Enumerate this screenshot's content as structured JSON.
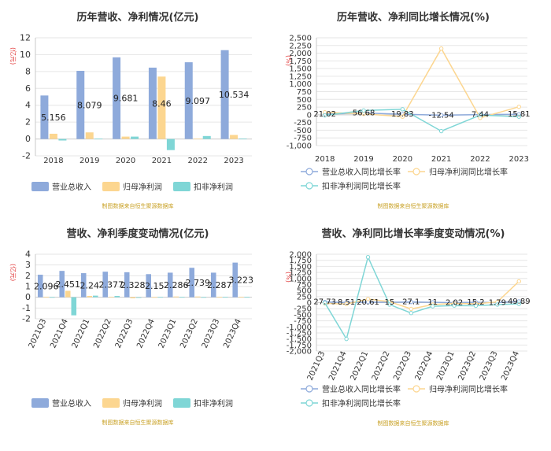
{
  "colors": {
    "revenue": "#8eaadb",
    "net_profit": "#fcd690",
    "deducted": "#7fd6d6",
    "axis": "#999999",
    "grid": "#e6e6e6",
    "title": "#333333",
    "unit": "#e23a3a",
    "source": "#c9a227"
  },
  "chart_data": [
    {
      "type": "bar",
      "title": "历年营收、净利情况(亿元)",
      "unit": "(亿元)",
      "source": "制图数据来自恒生聚源数据库",
      "categories": [
        "2018",
        "2019",
        "2020",
        "2021",
        "2022",
        "2023"
      ],
      "ylim": [
        -2,
        12
      ],
      "yticks": [
        -2,
        0,
        2,
        4,
        6,
        8,
        10,
        12
      ],
      "series": [
        {
          "name": "营业总收入",
          "values": [
            5.156,
            8.079,
            9.681,
            8.46,
            9.097,
            10.534
          ],
          "labels": [
            "5.156",
            "8.079",
            "9.681",
            "8.46",
            "9.097",
            "10.534"
          ]
        },
        {
          "name": "归母净利润",
          "values": [
            0.62,
            0.78,
            0.28,
            7.4,
            0.05,
            0.48
          ]
        },
        {
          "name": "扣非净利润",
          "values": [
            -0.18,
            0.05,
            0.28,
            -1.32,
            0.35,
            0.06
          ]
        }
      ],
      "legend": "bottom"
    },
    {
      "type": "line",
      "title": "历年营收、净利同比增长情况(%)",
      "unit": "(%)",
      "source": "制图数据来自恒生聚源数据库",
      "categories": [
        "2018",
        "2019",
        "2020",
        "2021",
        "2022",
        "2023"
      ],
      "ylim": [
        -1000,
        2500
      ],
      "yticks": [
        -1000,
        -750,
        -500,
        -250,
        0,
        250,
        500,
        750,
        1000,
        1250,
        1500,
        1750,
        2000,
        2250,
        2500
      ],
      "ytick_labels": [
        "-1,000",
        "-750",
        "-500",
        "-250",
        "0",
        "250",
        "500",
        "750",
        "1,000",
        "1,250",
        "1,500",
        "1,750",
        "2,000",
        "2,250",
        "2,500"
      ],
      "series": [
        {
          "name": "营业总收入同比增长率",
          "values": [
            21.02,
            56.68,
            19.83,
            -12.54,
            7.44,
            15.81
          ],
          "labels": [
            "21.02",
            "56.68",
            "19.83",
            "-12.54",
            "7.44",
            "15.81"
          ]
        },
        {
          "name": "归母净利润同比增长率",
          "values": [
            80,
            30,
            -60,
            2150,
            -100,
            260
          ]
        },
        {
          "name": "扣非净利润同比增长率",
          "values": [
            -20,
            140,
            180,
            -530,
            -10,
            -60
          ]
        }
      ],
      "legend": "bottom"
    },
    {
      "type": "bar",
      "title": "营收、净利季度变动情况(亿元)",
      "unit": "(亿元)",
      "source": "制图数据来自恒生聚源数据库",
      "categories": [
        "2021Q3",
        "2021Q4",
        "2022Q1",
        "2022Q2",
        "2022Q3",
        "2022Q4",
        "2023Q1",
        "2023Q2",
        "2023Q3",
        "2023Q4"
      ],
      "ylim": [
        -2,
        4
      ],
      "yticks": [
        -2,
        -1,
        0,
        1,
        2,
        3,
        4
      ],
      "series": [
        {
          "name": "营业总收入",
          "values": [
            2.096,
            2.451,
            2.24,
            2.377,
            2.328,
            2.15,
            2.286,
            2.739,
            2.287,
            3.223
          ],
          "labels": [
            "2.096",
            "2.451",
            "2.24",
            "2.377",
            "2.328",
            "2.15",
            "2.286",
            "2.739",
            "2.287",
            "3.223"
          ]
        },
        {
          "name": "归母净利润",
          "values": [
            0.05,
            0.6,
            0.12,
            0.05,
            -0.1,
            0.02,
            0.07,
            0.07,
            0.05,
            0.05
          ]
        },
        {
          "name": "扣非净利润",
          "values": [
            0.02,
            -1.68,
            0.15,
            0.12,
            -0.05,
            0.03,
            0.03,
            0.02,
            0.04,
            0.04
          ]
        }
      ],
      "legend": "bottom"
    },
    {
      "type": "line",
      "title": "营收、净利同比增长率季度变动情况(%)",
      "unit": "(%)",
      "source": "制图数据来自恒生聚源数据库",
      "categories": [
        "2021Q3",
        "2021Q4",
        "2022Q1",
        "2022Q2",
        "2022Q3",
        "2022Q4",
        "2023Q1",
        "2023Q2",
        "2023Q3",
        "2023Q4"
      ],
      "ylim": [
        -2000,
        2000
      ],
      "yticks": [
        -2000,
        -1750,
        -1500,
        -1250,
        -1000,
        -750,
        -500,
        -250,
        0,
        250,
        500,
        750,
        1000,
        1250,
        1500,
        1750,
        2000
      ],
      "ytick_labels": [
        "-2,000",
        "-1,750",
        "-1,500",
        "-1,250",
        "-1,000",
        "-750",
        "-500",
        "-250",
        "0",
        "250",
        "500",
        "750",
        "1,000",
        "1,250",
        "1,500",
        "1,750",
        "2,000"
      ],
      "series": [
        {
          "name": "营业总收入同比增长率",
          "values": [
            27.73,
            8.51,
            20.61,
            15,
            27.1,
            11.2,
            2.02,
            15.2,
            1.79,
            49.89
          ],
          "labels": [
            "27.73",
            "8.51",
            "20.61",
            "15",
            "27.1",
            "11",
            "2.02",
            "15.2",
            "1.79",
            "49.89"
          ]
        },
        {
          "name": "归母净利润同比增长率",
          "values": [
            -30,
            -60,
            150,
            40,
            -260,
            -80,
            -30,
            -50,
            30,
            880
          ]
        },
        {
          "name": "扣非净利润同比增长率",
          "values": [
            -10,
            -1500,
            1880,
            -80,
            -430,
            -150,
            -120,
            -130,
            -80,
            -50
          ]
        }
      ],
      "legend": "bottom"
    }
  ]
}
